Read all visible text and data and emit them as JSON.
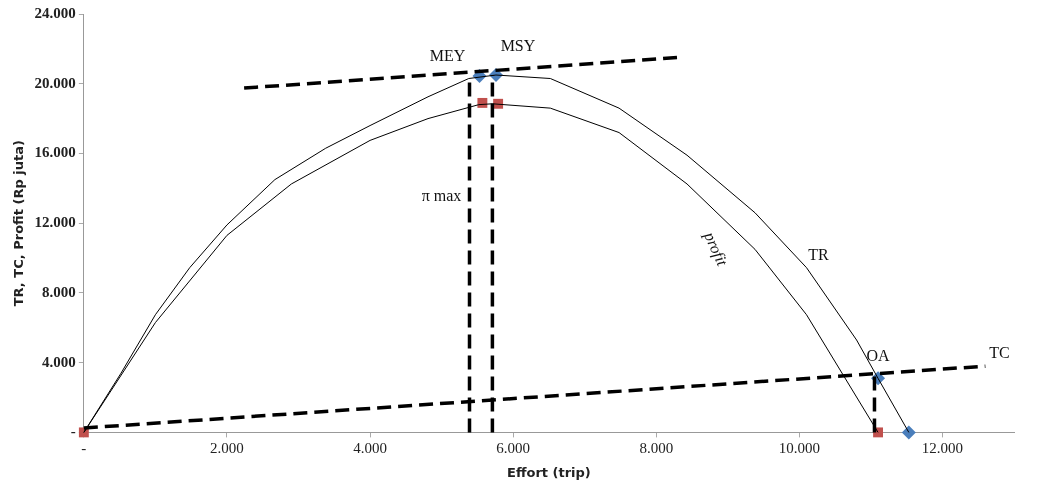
{
  "chart_data": {
    "type": "line",
    "xlabel": "Effort (trip)",
    "ylabel": "TR, TC, Profit (Rp juta)",
    "xlim": [
      0,
      13000
    ],
    "ylim": [
      0,
      24000
    ],
    "xticks": [
      {
        "value": 0,
        "label": "-"
      },
      {
        "value": 2000,
        "label": "2.000"
      },
      {
        "value": 4000,
        "label": "4.000"
      },
      {
        "value": 6000,
        "label": "6.000"
      },
      {
        "value": 8000,
        "label": "8.000"
      },
      {
        "value": 10000,
        "label": "10.000"
      },
      {
        "value": 12000,
        "label": "12.000"
      }
    ],
    "yticks": [
      {
        "value": 0,
        "label": "-"
      },
      {
        "value": 4000,
        "label": "4.000"
      },
      {
        "value": 8000,
        "label": "8.000"
      },
      {
        "value": 12000,
        "label": "12.000"
      },
      {
        "value": 16000,
        "label": "16.000"
      },
      {
        "value": 20000,
        "label": "20.000"
      },
      {
        "value": 24000,
        "label": "24.000"
      }
    ],
    "grid": false,
    "legend": false,
    "series": [
      {
        "color": "#000000",
        "marker": "none",
        "line_style": "solid",
        "x": [
          0,
          520,
          1000,
          1480,
          2000,
          2670,
          3380,
          4000,
          4810,
          5380,
          5760,
          6520,
          7480,
          8430,
          9380,
          10100,
          10800,
          11100,
          11530
        ],
        "values": [
          0,
          3400,
          6750,
          9450,
          11900,
          14500,
          16300,
          17600,
          19250,
          20300,
          20500,
          20300,
          18600,
          15900,
          12600,
          9450,
          5300,
          3100,
          0
        ]
      },
      {
        "color": "#000000",
        "marker": "none",
        "line_style": "solid",
        "x": [
          0,
          1000,
          2000,
          2900,
          4000,
          4810,
          5520,
          5710,
          6520,
          7480,
          8430,
          9380,
          10100,
          11100
        ],
        "values": [
          0,
          6300,
          11300,
          14250,
          16750,
          18000,
          18800,
          18850,
          18600,
          17200,
          14250,
          10500,
          6750,
          0
        ]
      },
      {
        "color": "#000000",
        "marker": "none",
        "line_style": "dashed",
        "x": [
          0,
          12600
        ],
        "values": [
          250,
          3800
        ]
      },
      {
        "color": "#000000",
        "marker": "none",
        "line_style": "dashed",
        "x": [
          2240,
          8290
        ],
        "values": [
          19750,
          21500
        ]
      },
      {
        "color": "#000000",
        "marker": "none",
        "line_style": "dashed",
        "x": [
          5390,
          5390
        ],
        "values": [
          0,
          20400
        ]
      },
      {
        "color": "#000000",
        "marker": "none",
        "line_style": "dashed",
        "x": [
          5710,
          5710
        ],
        "values": [
          0,
          20500
        ]
      },
      {
        "color": "#000000",
        "marker": "none",
        "line_style": "dashed",
        "x": [
          11050,
          11050
        ],
        "values": [
          0,
          3200
        ]
      },
      {
        "type": "scatter",
        "color": "#4a7ebb",
        "marker": "diamond",
        "x": [
          5530,
          5760,
          11100,
          11530
        ],
        "values": [
          20450,
          20500,
          3100,
          0
        ]
      },
      {
        "type": "scatter",
        "color": "#c0504d",
        "marker": "square",
        "x": [
          0,
          5570,
          5790,
          11100
        ],
        "values": [
          0,
          18900,
          18850,
          0
        ]
      }
    ],
    "annotations": [
      {
        "text": "MEY",
        "x": 5390,
        "y": 20400
      },
      {
        "text": "MSY",
        "x": 5760,
        "y": 20500
      },
      {
        "text": "π max",
        "x": 5390,
        "y": 13500
      },
      {
        "text": "profit",
        "x": 9380,
        "y": 10500
      },
      {
        "text": "TR",
        "x": 10100,
        "y": 9450
      },
      {
        "text": "OA",
        "x": 11100,
        "y": 3100
      },
      {
        "text": "TC",
        "x": 12600,
        "y": 3800
      }
    ]
  }
}
